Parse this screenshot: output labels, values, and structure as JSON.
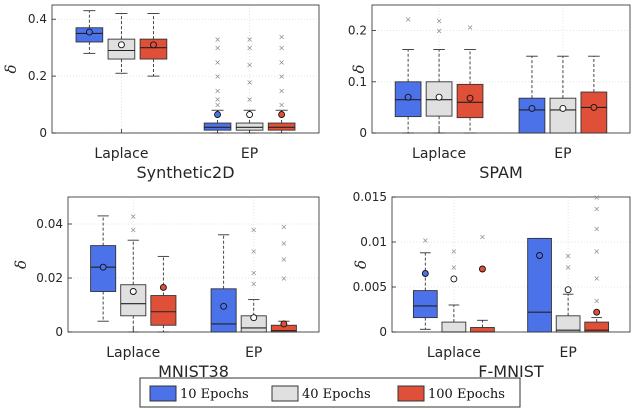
{
  "colors": {
    "10 Epochs": "#4c72ea",
    "40 Epochs": "#e0e0e0",
    "100 Epochs": "#e05038"
  },
  "legend": {
    "items": [
      "10 Epochs",
      "40 Epochs",
      "100 Epochs"
    ]
  },
  "chart_data": [
    {
      "type": "box",
      "title": "Synthetic2D",
      "ylabel": "δ",
      "ylim": [
        0,
        0.45
      ],
      "yticks": [
        0,
        0.2,
        0.4
      ],
      "ytick_labels": [
        "0",
        "0.2",
        "0.4"
      ],
      "categories": [
        "Laplace",
        "EP"
      ],
      "series": [
        {
          "name": "10 Epochs",
          "boxes": [
            {
              "whislo": 0.28,
              "q1": 0.32,
              "med": 0.35,
              "q3": 0.37,
              "whishi": 0.43,
              "mean": 0.355,
              "fliers": []
            },
            {
              "whislo": 0.0,
              "q1": 0.01,
              "med": 0.02,
              "q3": 0.035,
              "whishi": 0.08,
              "mean": 0.065,
              "fliers": [
                0.1,
                0.12,
                0.15,
                0.2,
                0.25,
                0.3,
                0.33
              ]
            }
          ]
        },
        {
          "name": "40 Epochs",
          "boxes": [
            {
              "whislo": 0.21,
              "q1": 0.26,
              "med": 0.29,
              "q3": 0.33,
              "whishi": 0.42,
              "mean": 0.31,
              "fliers": []
            },
            {
              "whislo": 0.0,
              "q1": 0.01,
              "med": 0.02,
              "q3": 0.035,
              "whishi": 0.08,
              "mean": 0.065,
              "fliers": [
                0.12,
                0.18,
                0.24,
                0.3,
                0.33
              ]
            }
          ]
        },
        {
          "name": "100 Epochs",
          "boxes": [
            {
              "whislo": 0.2,
              "q1": 0.26,
              "med": 0.3,
              "q3": 0.33,
              "whishi": 0.42,
              "mean": 0.31,
              "fliers": []
            },
            {
              "whislo": 0.0,
              "q1": 0.01,
              "med": 0.02,
              "q3": 0.035,
              "whishi": 0.08,
              "mean": 0.065,
              "fliers": [
                0.1,
                0.15,
                0.2,
                0.25,
                0.3,
                0.34
              ]
            }
          ]
        }
      ]
    },
    {
      "type": "box",
      "title": "SPAM",
      "ylabel": "δ",
      "ylim": [
        0,
        0.25
      ],
      "yticks": [
        0,
        0.1,
        0.2
      ],
      "ytick_labels": [
        "0",
        "0.1",
        "0.2"
      ],
      "categories": [
        "Laplace",
        "EP"
      ],
      "series": [
        {
          "name": "10 Epochs",
          "boxes": [
            {
              "whislo": 0.0,
              "q1": 0.032,
              "med": 0.065,
              "q3": 0.1,
              "whishi": 0.163,
              "mean": 0.07,
              "fliers": [
                0.223
              ]
            },
            {
              "whislo": 0.0,
              "q1": 0.0,
              "med": 0.045,
              "q3": 0.068,
              "whishi": 0.15,
              "mean": 0.048,
              "fliers": []
            }
          ]
        },
        {
          "name": "40 Epochs",
          "boxes": [
            {
              "whislo": 0.0,
              "q1": 0.033,
              "med": 0.065,
              "q3": 0.1,
              "whishi": 0.163,
              "mean": 0.07,
              "fliers": [
                0.2,
                0.22
              ]
            },
            {
              "whislo": 0.0,
              "q1": 0.0,
              "med": 0.045,
              "q3": 0.068,
              "whishi": 0.15,
              "mean": 0.048,
              "fliers": []
            }
          ]
        },
        {
          "name": "100 Epochs",
          "boxes": [
            {
              "whislo": 0.0,
              "q1": 0.03,
              "med": 0.06,
              "q3": 0.095,
              "whishi": 0.163,
              "mean": 0.068,
              "fliers": [
                0.207
              ]
            },
            {
              "whislo": 0.0,
              "q1": 0.0,
              "med": 0.05,
              "q3": 0.08,
              "whishi": 0.15,
              "mean": 0.05,
              "fliers": []
            }
          ]
        }
      ]
    },
    {
      "type": "box",
      "title": "MNIST38",
      "ylabel": "δ",
      "ylim": [
        0,
        0.05
      ],
      "yticks": [
        0,
        0.02,
        0.04
      ],
      "ytick_labels": [
        "0",
        "0.02",
        "0.04"
      ],
      "categories": [
        "Laplace",
        "EP"
      ],
      "series": [
        {
          "name": "10 Epochs",
          "boxes": [
            {
              "whislo": 0.004,
              "q1": 0.015,
              "med": 0.024,
              "q3": 0.032,
              "whishi": 0.043,
              "mean": 0.024,
              "fliers": []
            },
            {
              "whislo": 0.0,
              "q1": 0.0,
              "med": 0.003,
              "q3": 0.016,
              "whishi": 0.036,
              "mean": 0.0095,
              "fliers": []
            }
          ]
        },
        {
          "name": "40 Epochs",
          "boxes": [
            {
              "whislo": 0.0,
              "q1": 0.006,
              "med": 0.0105,
              "q3": 0.0175,
              "whishi": 0.034,
              "mean": 0.015,
              "fliers": [
                0.038,
                0.043
              ]
            },
            {
              "whislo": 0.0,
              "q1": 0.0,
              "med": 0.0015,
              "q3": 0.006,
              "whishi": 0.012,
              "mean": 0.0053,
              "fliers": [
                0.018,
                0.022,
                0.03,
                0.038
              ]
            }
          ]
        },
        {
          "name": "100 Epochs",
          "boxes": [
            {
              "whislo": 0.0,
              "q1": 0.0025,
              "med": 0.0075,
              "q3": 0.0135,
              "whishi": 0.028,
              "mean": 0.0165,
              "fliers": []
            },
            {
              "whislo": 0.0,
              "q1": 0.0,
              "med": 0.0005,
              "q3": 0.0025,
              "whishi": 0.004,
              "mean": 0.003,
              "fliers": [
                0.02,
                0.027,
                0.033,
                0.039
              ]
            }
          ]
        }
      ]
    },
    {
      "type": "box",
      "title": "F-MNIST",
      "ylabel": "δ",
      "ylim": [
        0,
        0.015
      ],
      "yticks": [
        0,
        0.005,
        0.01,
        0.015
      ],
      "ytick_labels": [
        "0",
        "0.005",
        "0.01",
        "0.015"
      ],
      "categories": [
        "Laplace",
        "EP"
      ],
      "series": [
        {
          "name": "10 Epochs",
          "boxes": [
            {
              "whislo": 0.0003,
              "q1": 0.0016,
              "med": 0.0029,
              "q3": 0.0046,
              "whishi": 0.0088,
              "mean": 0.0065,
              "fliers": [
                0.0102
              ]
            },
            {
              "whislo": 0.0,
              "q1": 0.0,
              "med": 0.0022,
              "q3": 0.0104,
              "whishi": 0.0104,
              "mean": 0.0085,
              "fliers": []
            }
          ]
        },
        {
          "name": "40 Epochs",
          "boxes": [
            {
              "whislo": 0.0,
              "q1": 0.0,
              "med": 0.0,
              "q3": 0.0011,
              "whishi": 0.003,
              "mean": 0.0059,
              "fliers": [
                0.0072,
                0.009
              ]
            },
            {
              "whislo": 0.0,
              "q1": 0.0,
              "med": 0.0002,
              "q3": 0.0018,
              "whishi": 0.0042,
              "mean": 0.0047,
              "fliers": [
                0.0072,
                0.0085
              ]
            }
          ]
        },
        {
          "name": "100 Epochs",
          "boxes": [
            {
              "whislo": 0.0,
              "q1": 0.0,
              "med": 0.0,
              "q3": 0.0005,
              "whishi": 0.0013,
              "mean": 0.007,
              "fliers": [
                0.0106
              ]
            },
            {
              "whislo": 0.0,
              "q1": 0.0,
              "med": 0.0002,
              "q3": 0.0011,
              "whishi": 0.0016,
              "mean": 0.0022,
              "fliers": [
                0.0035,
                0.006,
                0.009,
                0.0115,
                0.0137,
                0.015
              ]
            }
          ]
        }
      ]
    }
  ]
}
